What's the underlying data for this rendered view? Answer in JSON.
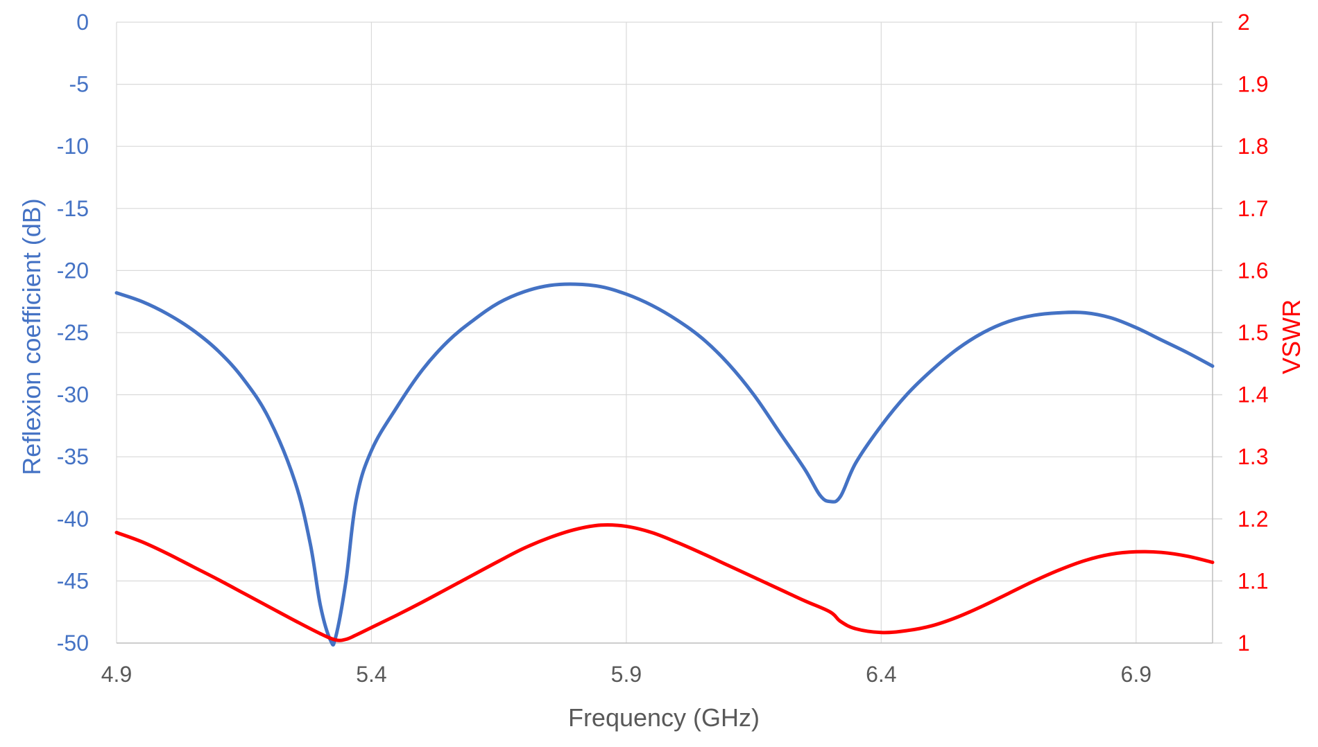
{
  "chart_data": {
    "type": "line",
    "xlabel": "Frequency (GHz)",
    "ylabel_left": "Reflexion coefficient (dB)",
    "ylabel_right": "VSWR",
    "xlim": [
      4.9,
      7.05
    ],
    "ylim_left": [
      -50,
      0
    ],
    "ylim_right": [
      1,
      2
    ],
    "x_ticks": [
      "4.9",
      "5.4",
      "5.9",
      "6.4",
      "6.9"
    ],
    "y_left_ticks": [
      "0",
      "-5",
      "-10",
      "-15",
      "-20",
      "-25",
      "-30",
      "-35",
      "-40",
      "-45",
      "-50"
    ],
    "y_right_ticks": [
      "2",
      "1.9",
      "1.8",
      "1.7",
      "1.6",
      "1.5",
      "1.4",
      "1.3",
      "1.2",
      "1.1",
      "1"
    ],
    "grid": true,
    "colors": {
      "left_axis": "#4472C4",
      "right_axis": "#FF0000",
      "grid": "#D9D9D9",
      "x_axis_text": "#595959"
    },
    "series": [
      {
        "axis": "left",
        "color": "#4472C4",
        "x": [
          4.9,
          4.95,
          5.0,
          5.05,
          5.1,
          5.15,
          5.2,
          5.25,
          5.28,
          5.3,
          5.32,
          5.33,
          5.35,
          5.37,
          5.4,
          5.45,
          5.5,
          5.55,
          5.6,
          5.65,
          5.7,
          5.75,
          5.8,
          5.85,
          5.9,
          5.95,
          6.0,
          6.05,
          6.1,
          6.15,
          6.2,
          6.25,
          6.28,
          6.3,
          6.32,
          6.35,
          6.4,
          6.45,
          6.5,
          6.55,
          6.6,
          6.65,
          6.7,
          6.75,
          6.8,
          6.85,
          6.9,
          6.95,
          7.0,
          7.05
        ],
        "values": [
          -21.8,
          -22.5,
          -23.5,
          -24.8,
          -26.5,
          -28.8,
          -32.0,
          -37.0,
          -42.0,
          -47.0,
          -49.8,
          -49.5,
          -45.0,
          -38.5,
          -34.5,
          -31.0,
          -28.0,
          -25.7,
          -24.0,
          -22.6,
          -21.7,
          -21.2,
          -21.1,
          -21.3,
          -21.9,
          -22.8,
          -24.0,
          -25.5,
          -27.5,
          -30.0,
          -33.0,
          -36.0,
          -38.1,
          -38.6,
          -38.2,
          -35.5,
          -32.5,
          -30.0,
          -28.0,
          -26.3,
          -25.0,
          -24.1,
          -23.6,
          -23.4,
          -23.4,
          -23.8,
          -24.6,
          -25.6,
          -26.6,
          -27.7
        ]
      },
      {
        "axis": "right",
        "color": "#FF0000",
        "x": [
          4.9,
          4.95,
          5.0,
          5.05,
          5.1,
          5.15,
          5.2,
          5.25,
          5.3,
          5.33,
          5.35,
          5.37,
          5.4,
          5.45,
          5.5,
          5.55,
          5.6,
          5.65,
          5.7,
          5.75,
          5.8,
          5.85,
          5.9,
          5.95,
          6.0,
          6.05,
          6.1,
          6.15,
          6.2,
          6.25,
          6.3,
          6.32,
          6.35,
          6.4,
          6.45,
          6.5,
          6.55,
          6.6,
          6.65,
          6.7,
          6.75,
          6.8,
          6.85,
          6.9,
          6.95,
          7.0,
          7.05
        ],
        "values": [
          1.178,
          1.163,
          1.144,
          1.123,
          1.102,
          1.08,
          1.058,
          1.036,
          1.015,
          1.005,
          1.006,
          1.013,
          1.025,
          1.045,
          1.066,
          1.088,
          1.11,
          1.132,
          1.153,
          1.17,
          1.183,
          1.19,
          1.188,
          1.178,
          1.162,
          1.144,
          1.125,
          1.106,
          1.087,
          1.068,
          1.05,
          1.035,
          1.023,
          1.017,
          1.02,
          1.028,
          1.042,
          1.06,
          1.08,
          1.1,
          1.118,
          1.133,
          1.143,
          1.147,
          1.146,
          1.14,
          1.13
        ]
      }
    ]
  }
}
